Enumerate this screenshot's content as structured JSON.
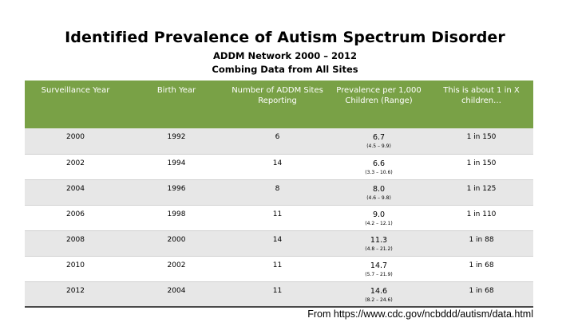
{
  "chart_data": {
    "type": "table",
    "title": "Identified Prevalence of Autism Spectrum Disorder",
    "subtitle_lines": [
      "ADDM Network 2000 – 2012",
      "Combing Data from All Sites"
    ],
    "columns": [
      "Surveillance Year",
      "Birth Year",
      "Number of ADDM Sites Reporting",
      "Prevalence per 1,000 Children (Range)",
      "This is about 1 in X children…"
    ],
    "rows": [
      {
        "surveillance_year": "2000",
        "birth_year": "1992",
        "sites": "6",
        "prevalence": "6.7",
        "range": "(4.5 – 9.9)",
        "one_in_x": "1 in 150"
      },
      {
        "surveillance_year": "2002",
        "birth_year": "1994",
        "sites": "14",
        "prevalence": "6.6",
        "range": "(3.3 – 10.6)",
        "one_in_x": "1 in 150"
      },
      {
        "surveillance_year": "2004",
        "birth_year": "1996",
        "sites": "8",
        "prevalence": "8.0",
        "range": "(4.6 – 9.8)",
        "one_in_x": "1 in 125"
      },
      {
        "surveillance_year": "2006",
        "birth_year": "1998",
        "sites": "11",
        "prevalence": "9.0",
        "range": "(4.2 – 12.1)",
        "one_in_x": "1 in 110"
      },
      {
        "surveillance_year": "2008",
        "birth_year": "2000",
        "sites": "14",
        "prevalence": "11.3",
        "range": "(4.8 – 21.2)",
        "one_in_x": "1 in 88"
      },
      {
        "surveillance_year": "2010",
        "birth_year": "2002",
        "sites": "11",
        "prevalence": "14.7",
        "range": "(5.7 – 21.9)",
        "one_in_x": "1 in 68"
      },
      {
        "surveillance_year": "2012",
        "birth_year": "2004",
        "sites": "11",
        "prevalence": "14.6",
        "range": "(8.2 – 24.6)",
        "one_in_x": "1 in 68"
      }
    ],
    "header_color": "#79a146",
    "stripe_color": "#e7e7e7"
  },
  "source": "From https://www.cdc.gov/ncbddd/autism/data.html"
}
